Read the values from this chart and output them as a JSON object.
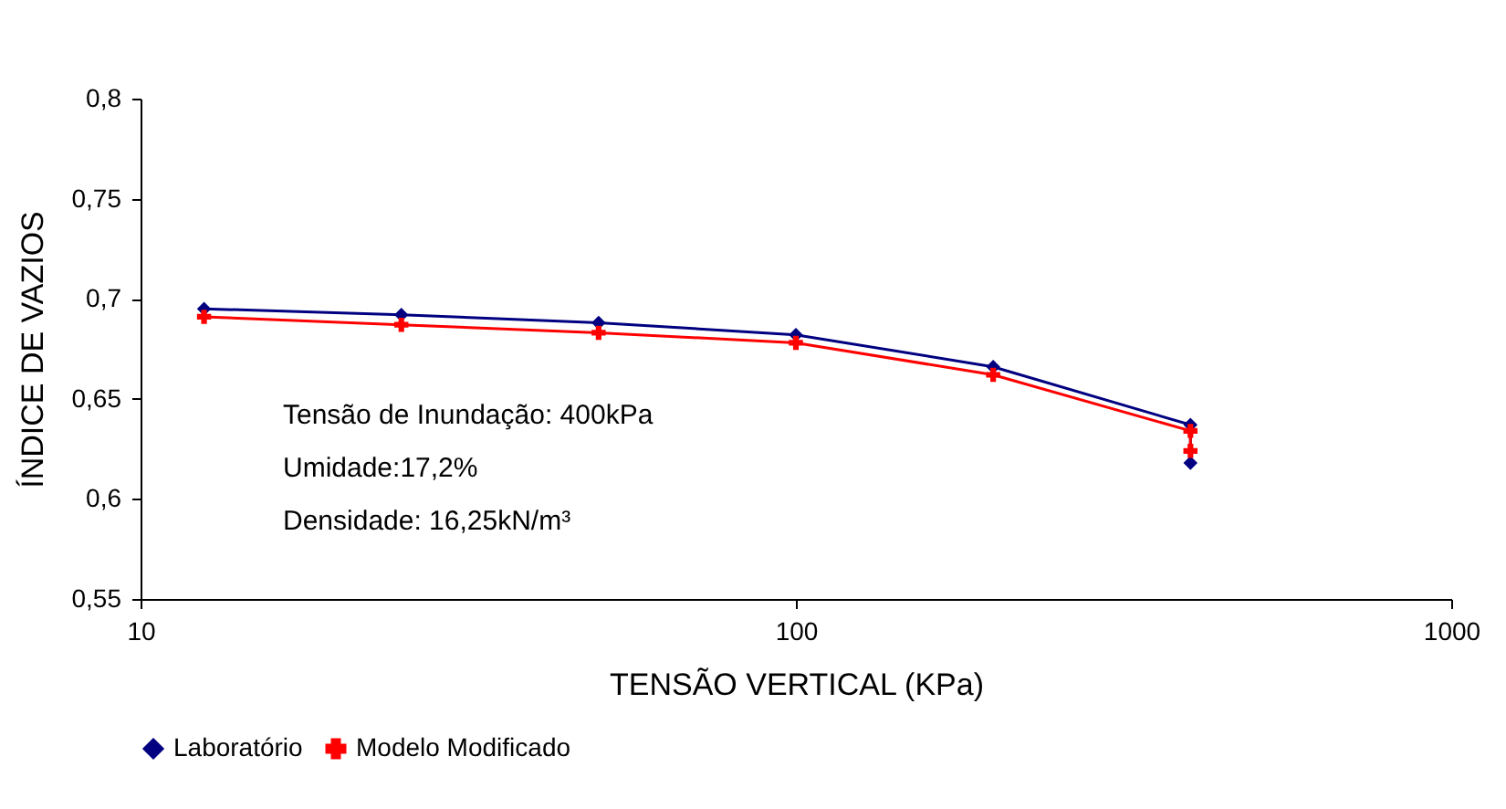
{
  "chart_data": {
    "type": "line",
    "xlabel": "TENSÃO VERTICAL (KPa)",
    "ylabel": "ÍNDICE DE VAZIOS",
    "log": "x",
    "xlim": [
      10,
      1000
    ],
    "xticks": [
      10,
      100,
      1000
    ],
    "ylim": [
      0.55,
      0.8
    ],
    "yticks": [
      {
        "value": 0.55,
        "label": "0,55"
      },
      {
        "value": 0.6,
        "label": "0,6"
      },
      {
        "value": 0.65,
        "label": "0,65"
      },
      {
        "value": 0.7,
        "label": "0,7"
      },
      {
        "value": 0.75,
        "label": "0,75"
      },
      {
        "value": 0.8,
        "label": "0,8"
      }
    ],
    "grid": false,
    "legend": "bottom",
    "series": [
      {
        "name": "Laboratório",
        "color": "#000080",
        "marker": "diamond",
        "x": [
          12.5,
          25,
          50,
          100,
          200,
          400,
          400
        ],
        "values": [
          0.695,
          0.692,
          0.688,
          0.682,
          0.666,
          0.637,
          0.618
        ]
      },
      {
        "name": "Modelo Modificado",
        "color": "#ff0000",
        "marker": "cross",
        "x": [
          12.5,
          25,
          50,
          100,
          200,
          400,
          400
        ],
        "values": [
          0.691,
          0.687,
          0.683,
          0.678,
          0.662,
          0.634,
          0.624
        ]
      }
    ],
    "annotations": [
      "Tensão de Inundação: 400kPa",
      "Umidade:17,2%",
      "Densidade: 16,25kN/m³"
    ]
  }
}
